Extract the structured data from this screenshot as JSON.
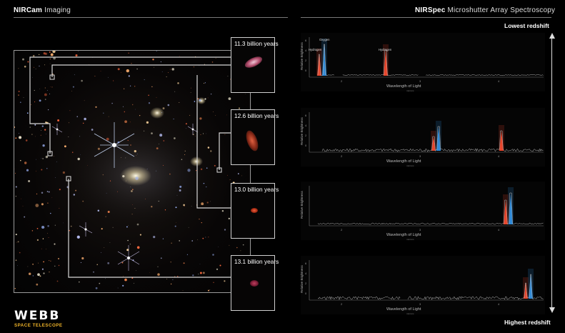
{
  "header": {
    "left_bold": "NIRCam",
    "left_rest": " Imaging",
    "right_bold": "NIRSpec",
    "right_rest": " Microshutter Array Spectroscopy"
  },
  "insets": [
    {
      "label": "11.3 billion years"
    },
    {
      "label": "12.6 billion years"
    },
    {
      "label": "13.0 billion years"
    },
    {
      "label": "13.1 billion years"
    }
  ],
  "spectra": {
    "ylabel": "Relative Brightness",
    "xlabel": "Wavelength of Light",
    "xunit": "microns",
    "xticks": [
      "2",
      "3",
      "4"
    ],
    "yticks": [
      "6",
      "4",
      "2",
      "0"
    ],
    "line_labels": {
      "oxygen": "Oxygen",
      "hydrogen_a": "Hydrogen",
      "hydrogen_b": "Hydrogen"
    }
  },
  "redshift": {
    "top": "Lowest redshift",
    "bottom": "Highest redshift"
  },
  "logo": {
    "word": "WEBB",
    "sub": "SPACE TELESCOPE"
  },
  "colors": {
    "hydrogen": "#e8452b",
    "oxygen": "#2f8ad8",
    "trace": "#bdbdbd",
    "accent": "#f0b429"
  }
}
